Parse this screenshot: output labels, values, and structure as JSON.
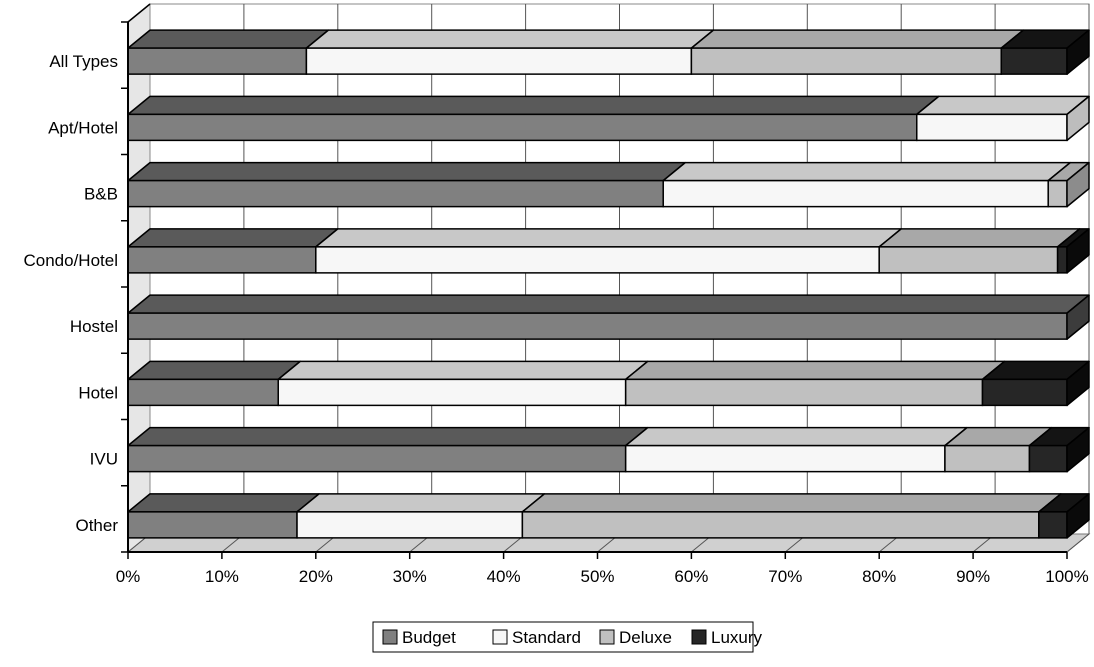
{
  "chart_data": {
    "type": "bar",
    "orientation": "horizontal",
    "stacked": "percent",
    "style": "3d",
    "categories": [
      "All Types",
      "Apt/Hotel",
      "B&B",
      "Condo/Hotel",
      "Hostel",
      "Hotel",
      "IVU",
      "Other"
    ],
    "series": [
      {
        "name": "Budget",
        "values": [
          19,
          84,
          57,
          20,
          100,
          16,
          53,
          18
        ]
      },
      {
        "name": "Standard",
        "values": [
          41,
          16,
          41,
          60,
          0,
          37,
          34,
          24
        ]
      },
      {
        "name": "Deluxe",
        "values": [
          33,
          0,
          2,
          19,
          0,
          38,
          9,
          55
        ]
      },
      {
        "name": "Luxury",
        "values": [
          7,
          0,
          0,
          1,
          0,
          9,
          4,
          3
        ]
      }
    ],
    "xlim": [
      0,
      100
    ],
    "x_ticks": [
      "0%",
      "10%",
      "20%",
      "30%",
      "40%",
      "50%",
      "60%",
      "70%",
      "80%",
      "90%",
      "100%"
    ],
    "legend": {
      "position": "bottom",
      "entries": [
        "Budget",
        "Standard",
        "Deluxe",
        "Luxury"
      ]
    },
    "grid": true,
    "colors": {
      "Budget": {
        "front": "#808080",
        "top": "#5a5a5a",
        "side": "#3c3c3c"
      },
      "Standard": {
        "front": "#f7f7f7",
        "top": "#c8c8c8",
        "side": "#bdbdbd"
      },
      "Deluxe": {
        "front": "#c0c0c0",
        "top": "#a8a8a8",
        "side": "#8c8c8c"
      },
      "Luxury": {
        "front": "#262626",
        "top": "#141414",
        "side": "#0a0a0a"
      }
    }
  }
}
